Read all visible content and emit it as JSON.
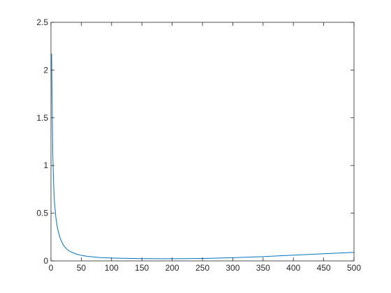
{
  "chart_data": {
    "type": "line",
    "title": "",
    "xlabel": "",
    "ylabel": "",
    "xlim": [
      0,
      500
    ],
    "ylim": [
      0,
      2.5
    ],
    "xticks": [
      0,
      50,
      100,
      150,
      200,
      250,
      300,
      350,
      400,
      450,
      500
    ],
    "yticks": [
      0,
      0.5,
      1,
      1.5,
      2,
      2.5
    ],
    "xtick_labels": [
      "0",
      "50",
      "100",
      "150",
      "200",
      "250",
      "300",
      "350",
      "400",
      "450",
      "500"
    ],
    "ytick_labels": [
      "0",
      "0.5",
      "1",
      "1.5",
      "2",
      "2.5"
    ],
    "grid": false,
    "legend": "none",
    "series": [
      {
        "color": "#0072bd",
        "x": [
          1,
          2,
          3,
          4,
          5,
          6,
          8,
          10,
          12,
          15,
          20,
          25,
          30,
          40,
          50,
          60,
          80,
          100,
          120,
          150,
          180,
          200,
          220,
          250,
          280,
          300,
          350,
          400,
          450,
          500
        ],
        "y": [
          2.17,
          1.6,
          1.12,
          0.87,
          0.71,
          0.6,
          0.46,
          0.37,
          0.31,
          0.24,
          0.17,
          0.13,
          0.105,
          0.075,
          0.058,
          0.048,
          0.036,
          0.03,
          0.027,
          0.024,
          0.023,
          0.023,
          0.024,
          0.026,
          0.03,
          0.034,
          0.045,
          0.06,
          0.075,
          0.09
        ]
      }
    ]
  }
}
